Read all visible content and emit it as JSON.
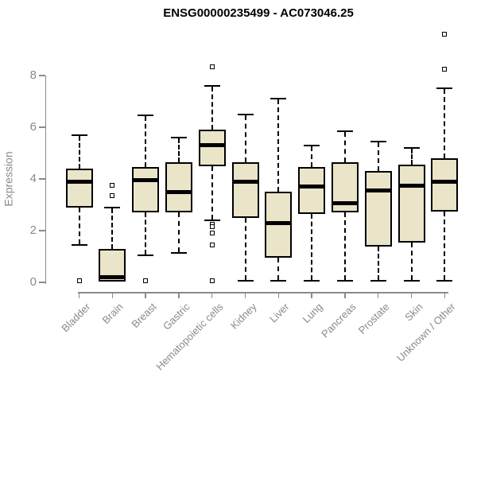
{
  "chart_data": {
    "type": "box",
    "title": "ENSG00000235499 - AC073046.25",
    "ylabel": "Expression",
    "xlabel": "",
    "ylim": [
      0,
      9.8
    ],
    "yticks": [
      0,
      2,
      4,
      6,
      8
    ],
    "grid": false,
    "legend_position": "none",
    "outlier_marker": "open-square",
    "colors": {
      "box_fill": "#EAE4C9",
      "box_border": "#000000",
      "median": "#000000",
      "whisker": "#000000",
      "axis": "#8A8A8A",
      "title": "#000000"
    },
    "categories": [
      "Bladder",
      "Brain",
      "Breast",
      "Gastric",
      "Hematopoietic cells",
      "Kidney",
      "Liver",
      "Lung",
      "Pancreas",
      "Prostate",
      "Skin",
      "Unknown / Other"
    ],
    "series": [
      {
        "category": "Bladder",
        "whisker_low": 1.45,
        "q1": 2.9,
        "median": 3.9,
        "q3": 4.4,
        "whisker_high": 5.7,
        "outliers": [
          0.05
        ]
      },
      {
        "category": "Brain",
        "whisker_low": 0.03,
        "q1": 0.03,
        "median": 0.2,
        "q3": 1.3,
        "whisker_high": 2.9,
        "outliers": [
          3.35,
          3.75
        ]
      },
      {
        "category": "Breast",
        "whisker_low": 1.05,
        "q1": 2.7,
        "median": 3.95,
        "q3": 4.45,
        "whisker_high": 6.45,
        "outliers": [
          0.05
        ]
      },
      {
        "category": "Gastric",
        "whisker_low": 1.15,
        "q1": 2.7,
        "median": 3.5,
        "q3": 4.65,
        "whisker_high": 5.6,
        "outliers": []
      },
      {
        "category": "Hematopoietic cells",
        "whisker_low": 2.4,
        "q1": 4.5,
        "median": 5.3,
        "q3": 5.9,
        "whisker_high": 7.6,
        "outliers": [
          8.35,
          2.25,
          2.15,
          1.9,
          1.45,
          0.05
        ]
      },
      {
        "category": "Kidney",
        "whisker_low": 0.05,
        "q1": 2.5,
        "median": 3.9,
        "q3": 4.65,
        "whisker_high": 6.5,
        "outliers": []
      },
      {
        "category": "Liver",
        "whisker_low": 0.05,
        "q1": 0.95,
        "median": 2.3,
        "q3": 3.5,
        "whisker_high": 7.1,
        "outliers": []
      },
      {
        "category": "Lung",
        "whisker_low": 0.05,
        "q1": 2.65,
        "median": 3.7,
        "q3": 4.45,
        "whisker_high": 5.3,
        "outliers": []
      },
      {
        "category": "Pancreas",
        "whisker_low": 0.05,
        "q1": 2.7,
        "median": 3.05,
        "q3": 4.65,
        "whisker_high": 5.85,
        "outliers": []
      },
      {
        "category": "Prostate",
        "whisker_low": 0.05,
        "q1": 1.4,
        "median": 3.55,
        "q3": 4.3,
        "whisker_high": 5.45,
        "outliers": []
      },
      {
        "category": "Skin",
        "whisker_low": 0.05,
        "q1": 1.55,
        "median": 3.75,
        "q3": 4.55,
        "whisker_high": 5.2,
        "outliers": []
      },
      {
        "category": "Unknown / Other",
        "whisker_low": 0.05,
        "q1": 2.75,
        "median": 3.9,
        "q3": 4.8,
        "whisker_high": 7.5,
        "outliers": [
          8.25,
          9.6
        ]
      }
    ]
  }
}
